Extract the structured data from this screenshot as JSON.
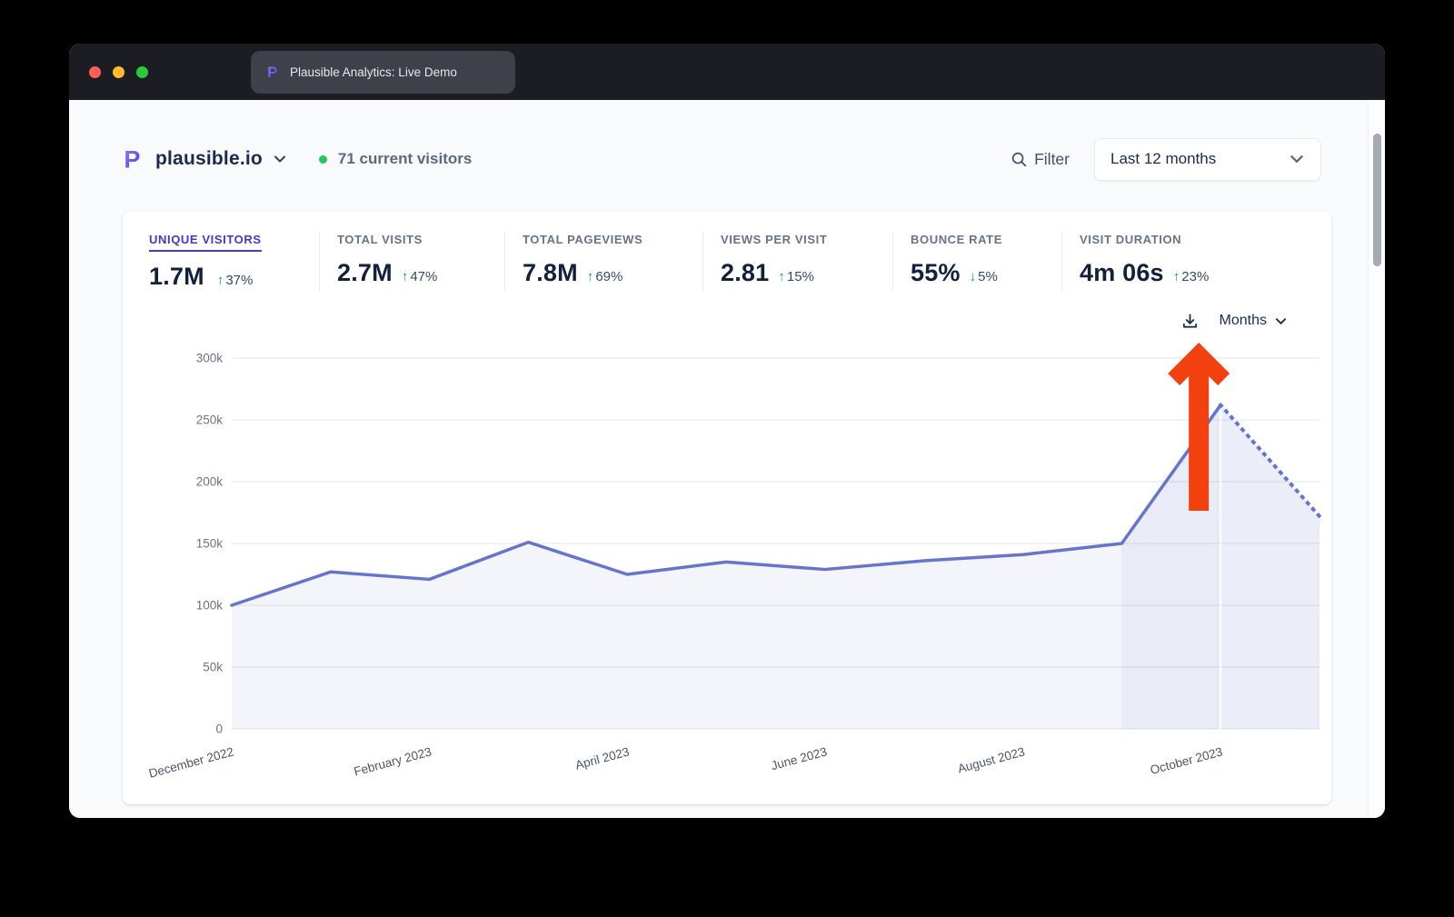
{
  "window": {
    "tab_title": "Plausible Analytics: Live Demo"
  },
  "header": {
    "site_name": "plausible.io",
    "current_visitors": "71 current visitors",
    "filter_label": "Filter",
    "date_range": "Last 12 months"
  },
  "stats": [
    {
      "label": "UNIQUE VISITORS",
      "value": "1.7M",
      "arrow": "↑",
      "change": "37%",
      "active": true
    },
    {
      "label": "TOTAL VISITS",
      "value": "2.7M",
      "arrow": "↑",
      "change": "47%",
      "active": false
    },
    {
      "label": "TOTAL PAGEVIEWS",
      "value": "7.8M",
      "arrow": "↑",
      "change": "69%",
      "active": false
    },
    {
      "label": "VIEWS PER VISIT",
      "value": "2.81",
      "arrow": "↑",
      "change": "15%",
      "active": false
    },
    {
      "label": "BOUNCE RATE",
      "value": "55%",
      "arrow": "↓",
      "change": "5%",
      "active": false
    },
    {
      "label": "VISIT DURATION",
      "value": "4m 06s",
      "arrow": "↑",
      "change": "23%",
      "active": false
    }
  ],
  "chart_controls": {
    "interval_label": "Months"
  },
  "chart_data": {
    "type": "line",
    "title": "Unique visitors over last 12 months",
    "x": [
      "December 2022",
      "January 2023",
      "February 2023",
      "March 2023",
      "April 2023",
      "May 2023",
      "June 2023",
      "July 2023",
      "August 2023",
      "September 2023",
      "October 2023",
      "November 2023"
    ],
    "series": [
      {
        "name": "Unique visitors",
        "values": [
          100000,
          127000,
          121000,
          151000,
          125000,
          135000,
          129000,
          136000,
          141000,
          150000,
          262000,
          172000
        ]
      }
    ],
    "solid_until_index": 10,
    "x_tick_every": 2,
    "x_tick_labels": [
      "December 2022",
      "February 2023",
      "April 2023",
      "June 2023",
      "August 2023",
      "October 2023"
    ],
    "y_ticks": [
      {
        "value": 0,
        "label": "0"
      },
      {
        "value": 50000,
        "label": "50k"
      },
      {
        "value": 100000,
        "label": "100k"
      },
      {
        "value": 150000,
        "label": "150k"
      },
      {
        "value": 200000,
        "label": "200k"
      },
      {
        "value": 250000,
        "label": "250k"
      },
      {
        "value": 300000,
        "label": "300k"
      }
    ],
    "ylim": [
      0,
      300000
    ],
    "grid": true,
    "legend": "none",
    "line_color": "#6574cd",
    "fill_color": "rgba(101,116,205,0.07)",
    "dashed_fill_color": "rgba(101,116,205,0.13)",
    "grid_color": "#e8ebef",
    "axis_label_color_y": "#6b7280",
    "axis_label_color_x": "#4b5563",
    "annotation": {
      "type": "up-arrow",
      "at": "October 2023",
      "color": "#f2400e"
    }
  },
  "colors": {
    "accent_indigo": "#4338ca",
    "brand_logo_from": "#8b7cf7",
    "brand_logo_to": "#4a3dd8",
    "positive_green": "#16a34a",
    "live_dot_green": "#22c55e"
  }
}
